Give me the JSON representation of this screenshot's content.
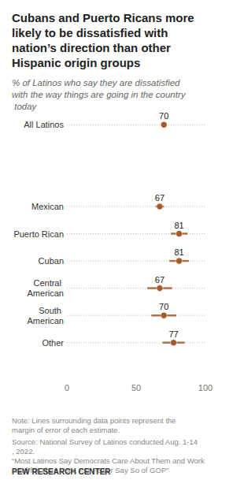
{
  "chart_data": {
    "type": "dot",
    "title": "Cubans and Puerto Ricans more likely to be dissatisfied with nation’s direction than other Hispanic origin groups",
    "subtitle": "% of Latinos who say they are dissatisfied with the way things are going in the country today",
    "categories": [
      "All Latinos",
      null,
      null,
      "Mexican",
      "Puerto Rican",
      "Cuban",
      "Central American",
      "South American",
      "Other"
    ],
    "values": [
      70,
      null,
      null,
      67,
      81,
      81,
      67,
      70,
      77
    ],
    "margin_of_error": [
      2,
      null,
      null,
      3,
      6,
      7,
      9,
      9,
      8
    ],
    "color": "#a55a2a",
    "orientation": "horizontal",
    "xlim": [
      0,
      100
    ],
    "xticks": [
      0,
      50,
      100
    ],
    "grid": true,
    "data_labels": true,
    "note": "Note: Lines surrounding data points represent the margin of error of each estimate.",
    "source": [
      "Source: National Survey of Latinos conducted Aug. 1-14, 2022.",
      "“Most Latinos Say Democrats Care About Them and Work Hard for Their Vote, Far Fewer Say So of GOP”"
    ],
    "credit": "PEW RESEARCH CENTER"
  }
}
